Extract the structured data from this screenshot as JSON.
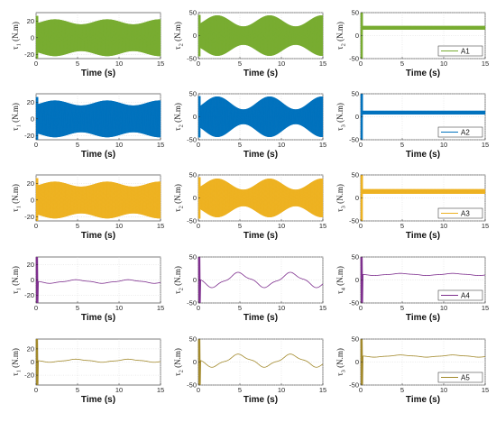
{
  "chart_data": [
    {
      "type": "line",
      "row": 1,
      "col": 1,
      "color": "#77AC30",
      "ylabel": [
        "τ",
        "1",
        " (N.m)"
      ],
      "xlabel": "Time (s)",
      "xlim": [
        0,
        15
      ],
      "ylim": [
        -25,
        30
      ],
      "xticks": [
        "0",
        "5",
        "10",
        "15"
      ],
      "yticks": [
        "-20",
        "0",
        "20"
      ],
      "signal": {
        "mode": "band",
        "mean": 0,
        "amp": 19,
        "amp_var": 3,
        "period": 6.3,
        "spike": 26
      },
      "legend": ""
    },
    {
      "type": "line",
      "row": 1,
      "col": 2,
      "color": "#77AC30",
      "ylabel": [
        "τ",
        "2",
        " (N.m)"
      ],
      "xlabel": "Time (s)",
      "xlim": [
        0,
        15
      ],
      "ylim": [
        -50,
        50
      ],
      "xticks": [
        "0",
        "5",
        "10",
        "15"
      ],
      "yticks": [
        "-50",
        "0",
        "50"
      ],
      "signal": {
        "mode": "band",
        "mean": 0,
        "amp": 32,
        "amp_var": 12,
        "period": 6.3,
        "spike": 45
      },
      "legend": ""
    },
    {
      "type": "line",
      "row": 1,
      "col": 3,
      "color": "#77AC30",
      "ylabel": [
        "τ",
        "2",
        " (N.m)"
      ],
      "xlabel": "Time (s)",
      "xlim": [
        0,
        15
      ],
      "ylim": [
        -50,
        50
      ],
      "xticks": [
        "0",
        "5",
        "10",
        "15"
      ],
      "yticks": [
        "-50",
        "0",
        "50"
      ],
      "signal": {
        "mode": "band",
        "mean": 17,
        "amp": 4,
        "amp_var": 0,
        "period": 6.3,
        "spike": 50
      },
      "legend": "A1"
    },
    {
      "type": "line",
      "row": 2,
      "col": 1,
      "color": "#0072BD",
      "ylabel": [
        "τ",
        "1",
        " (N.m)"
      ],
      "xlabel": "Time (s)",
      "xlim": [
        0,
        15
      ],
      "ylim": [
        -25,
        30
      ],
      "xticks": [
        "0",
        "5",
        "10",
        "15"
      ],
      "yticks": [
        "-20",
        "0",
        "20"
      ],
      "signal": {
        "mode": "band",
        "mean": 0,
        "amp": 19,
        "amp_var": 3,
        "period": 6.3,
        "spike": 26
      },
      "legend": ""
    },
    {
      "type": "line",
      "row": 2,
      "col": 2,
      "color": "#0072BD",
      "ylabel": [
        "τ",
        "2",
        " (N.m)"
      ],
      "xlabel": "Time (s)",
      "xlim": [
        0,
        15
      ],
      "ylim": [
        -50,
        50
      ],
      "xticks": [
        "0",
        "5",
        "10",
        "15"
      ],
      "yticks": [
        "-50",
        "0",
        "50"
      ],
      "signal": {
        "mode": "band",
        "mean": 0,
        "amp": 30,
        "amp_var": 14,
        "period": 6.3,
        "spike": 45
      },
      "legend": ""
    },
    {
      "type": "line",
      "row": 2,
      "col": 3,
      "color": "#0072BD",
      "ylabel": [
        "τ",
        "3",
        " (N.m)"
      ],
      "xlabel": "Time (s)",
      "xlim": [
        0,
        15
      ],
      "ylim": [
        -50,
        50
      ],
      "xticks": [
        "0",
        "5",
        "10",
        "15"
      ],
      "yticks": [
        "-50",
        "0",
        "50"
      ],
      "signal": {
        "mode": "band",
        "mean": 9,
        "amp": 4,
        "amp_var": 0,
        "period": 6.3,
        "spike": 50
      },
      "legend": "A2"
    },
    {
      "type": "line",
      "row": 3,
      "col": 1,
      "color": "#EDB120",
      "ylabel": [
        "τ",
        "1",
        " (N.m)"
      ],
      "xlabel": "Time (s)",
      "xlim": [
        0,
        15
      ],
      "ylim": [
        -25,
        30
      ],
      "xticks": [
        "0",
        "5",
        "10",
        "15"
      ],
      "yticks": [
        "-20",
        "0",
        "20"
      ],
      "signal": {
        "mode": "band",
        "mean": 0,
        "amp": 19,
        "amp_var": 3,
        "period": 6.3,
        "spike": 26
      },
      "legend": ""
    },
    {
      "type": "line",
      "row": 3,
      "col": 2,
      "color": "#EDB120",
      "ylabel": [
        "τ",
        "2",
        " (N.m)"
      ],
      "xlabel": "Time (s)",
      "xlim": [
        0,
        15
      ],
      "ylim": [
        -50,
        50
      ],
      "xticks": [
        "0",
        "5",
        "10",
        "15"
      ],
      "yticks": [
        "-50",
        "0",
        "50"
      ],
      "signal": {
        "mode": "band",
        "mean": 0,
        "amp": 30,
        "amp_var": 12,
        "period": 6.3,
        "spike": 45
      },
      "legend": ""
    },
    {
      "type": "line",
      "row": 3,
      "col": 3,
      "color": "#EDB120",
      "ylabel": [
        "τ",
        "3",
        " (N.m)"
      ],
      "xlabel": "Time (s)",
      "xlim": [
        0,
        15
      ],
      "ylim": [
        -50,
        50
      ],
      "xticks": [
        "0",
        "5",
        "10",
        "15"
      ],
      "yticks": [
        "-50",
        "0",
        "50"
      ],
      "signal": {
        "mode": "band",
        "mean": 14,
        "amp": 5,
        "amp_var": 0,
        "period": 6.3,
        "spike": 50
      },
      "legend": "A3"
    },
    {
      "type": "line",
      "row": 4,
      "col": 1,
      "color": "#7E2F8E",
      "ylabel": [
        "τ",
        "1",
        " (N.m)"
      ],
      "xlabel": "Time (s)",
      "xlim": [
        0,
        15
      ],
      "ylim": [
        -30,
        30
      ],
      "xticks": [
        "0",
        "5",
        "10",
        "15"
      ],
      "yticks": [
        "-20",
        "0",
        "20"
      ],
      "signal": {
        "mode": "smooth",
        "mean": -2,
        "amp": 2,
        "amp_var": 0,
        "period": 6.3,
        "spike": 30
      },
      "legend": ""
    },
    {
      "type": "line",
      "row": 4,
      "col": 2,
      "color": "#7E2F8E",
      "ylabel": [
        "τ",
        "2",
        " (N.m)"
      ],
      "xlabel": "Time (s)",
      "xlim": [
        0,
        15
      ],
      "ylim": [
        -50,
        50
      ],
      "xticks": [
        "0",
        "5",
        "10",
        "15"
      ],
      "yticks": [
        "-50",
        "0",
        "50"
      ],
      "signal": {
        "mode": "smooth",
        "mean": 0,
        "amp": 14,
        "amp_var": 0,
        "period": 6.3,
        "spike": 50
      },
      "legend": ""
    },
    {
      "type": "line",
      "row": 4,
      "col": 3,
      "color": "#7E2F8E",
      "ylabel": [
        "τ",
        "4",
        " (N.m)"
      ],
      "xlabel": "Time (s)",
      "xlim": [
        0,
        15
      ],
      "ylim": [
        -50,
        50
      ],
      "xticks": [
        "0",
        "5",
        "10",
        "15"
      ],
      "yticks": [
        "-50",
        "0",
        "50"
      ],
      "signal": {
        "mode": "smooth",
        "mean": 12,
        "amp": 2,
        "amp_var": 0,
        "period": 6.3,
        "spike": 50
      },
      "legend": "A4"
    },
    {
      "type": "line",
      "row": 5,
      "col": 1,
      "color": "#A2892B",
      "ylabel": [
        "τ",
        "1",
        " (N.m)"
      ],
      "xlabel": "Time (s)",
      "xlim": [
        0,
        15
      ],
      "ylim": [
        -35,
        35
      ],
      "xticks": [
        "0",
        "5",
        "10",
        "15"
      ],
      "yticks": [
        "-20",
        "0",
        "20"
      ],
      "signal": {
        "mode": "smooth",
        "mean": 2,
        "amp": 2,
        "amp_var": 0,
        "period": 6.3,
        "spike": 35
      },
      "legend": ""
    },
    {
      "type": "line",
      "row": 5,
      "col": 2,
      "color": "#A2892B",
      "ylabel": [
        "τ",
        "2",
        " (N.m)"
      ],
      "xlabel": "Time (s)",
      "xlim": [
        0,
        15
      ],
      "ylim": [
        -50,
        50
      ],
      "xticks": [
        "0",
        "5",
        "10",
        "15"
      ],
      "yticks": [
        "-50",
        "0",
        "50"
      ],
      "signal": {
        "mode": "smooth",
        "mean": 3,
        "amp": 12,
        "amp_var": 0,
        "period": 6.3,
        "spike": 50
      },
      "legend": ""
    },
    {
      "type": "line",
      "row": 5,
      "col": 3,
      "color": "#A2892B",
      "ylabel": [
        "τ",
        "3",
        " (N.m)"
      ],
      "xlabel": "Time (s)",
      "xlim": [
        0,
        15
      ],
      "ylim": [
        -50,
        50
      ],
      "xticks": [
        "0",
        "5",
        "10",
        "15"
      ],
      "yticks": [
        "-50",
        "0",
        "50"
      ],
      "signal": {
        "mode": "smooth",
        "mean": 13,
        "amp": 2,
        "amp_var": 0,
        "period": 6.3,
        "spike": 50
      },
      "legend": "A5"
    }
  ]
}
